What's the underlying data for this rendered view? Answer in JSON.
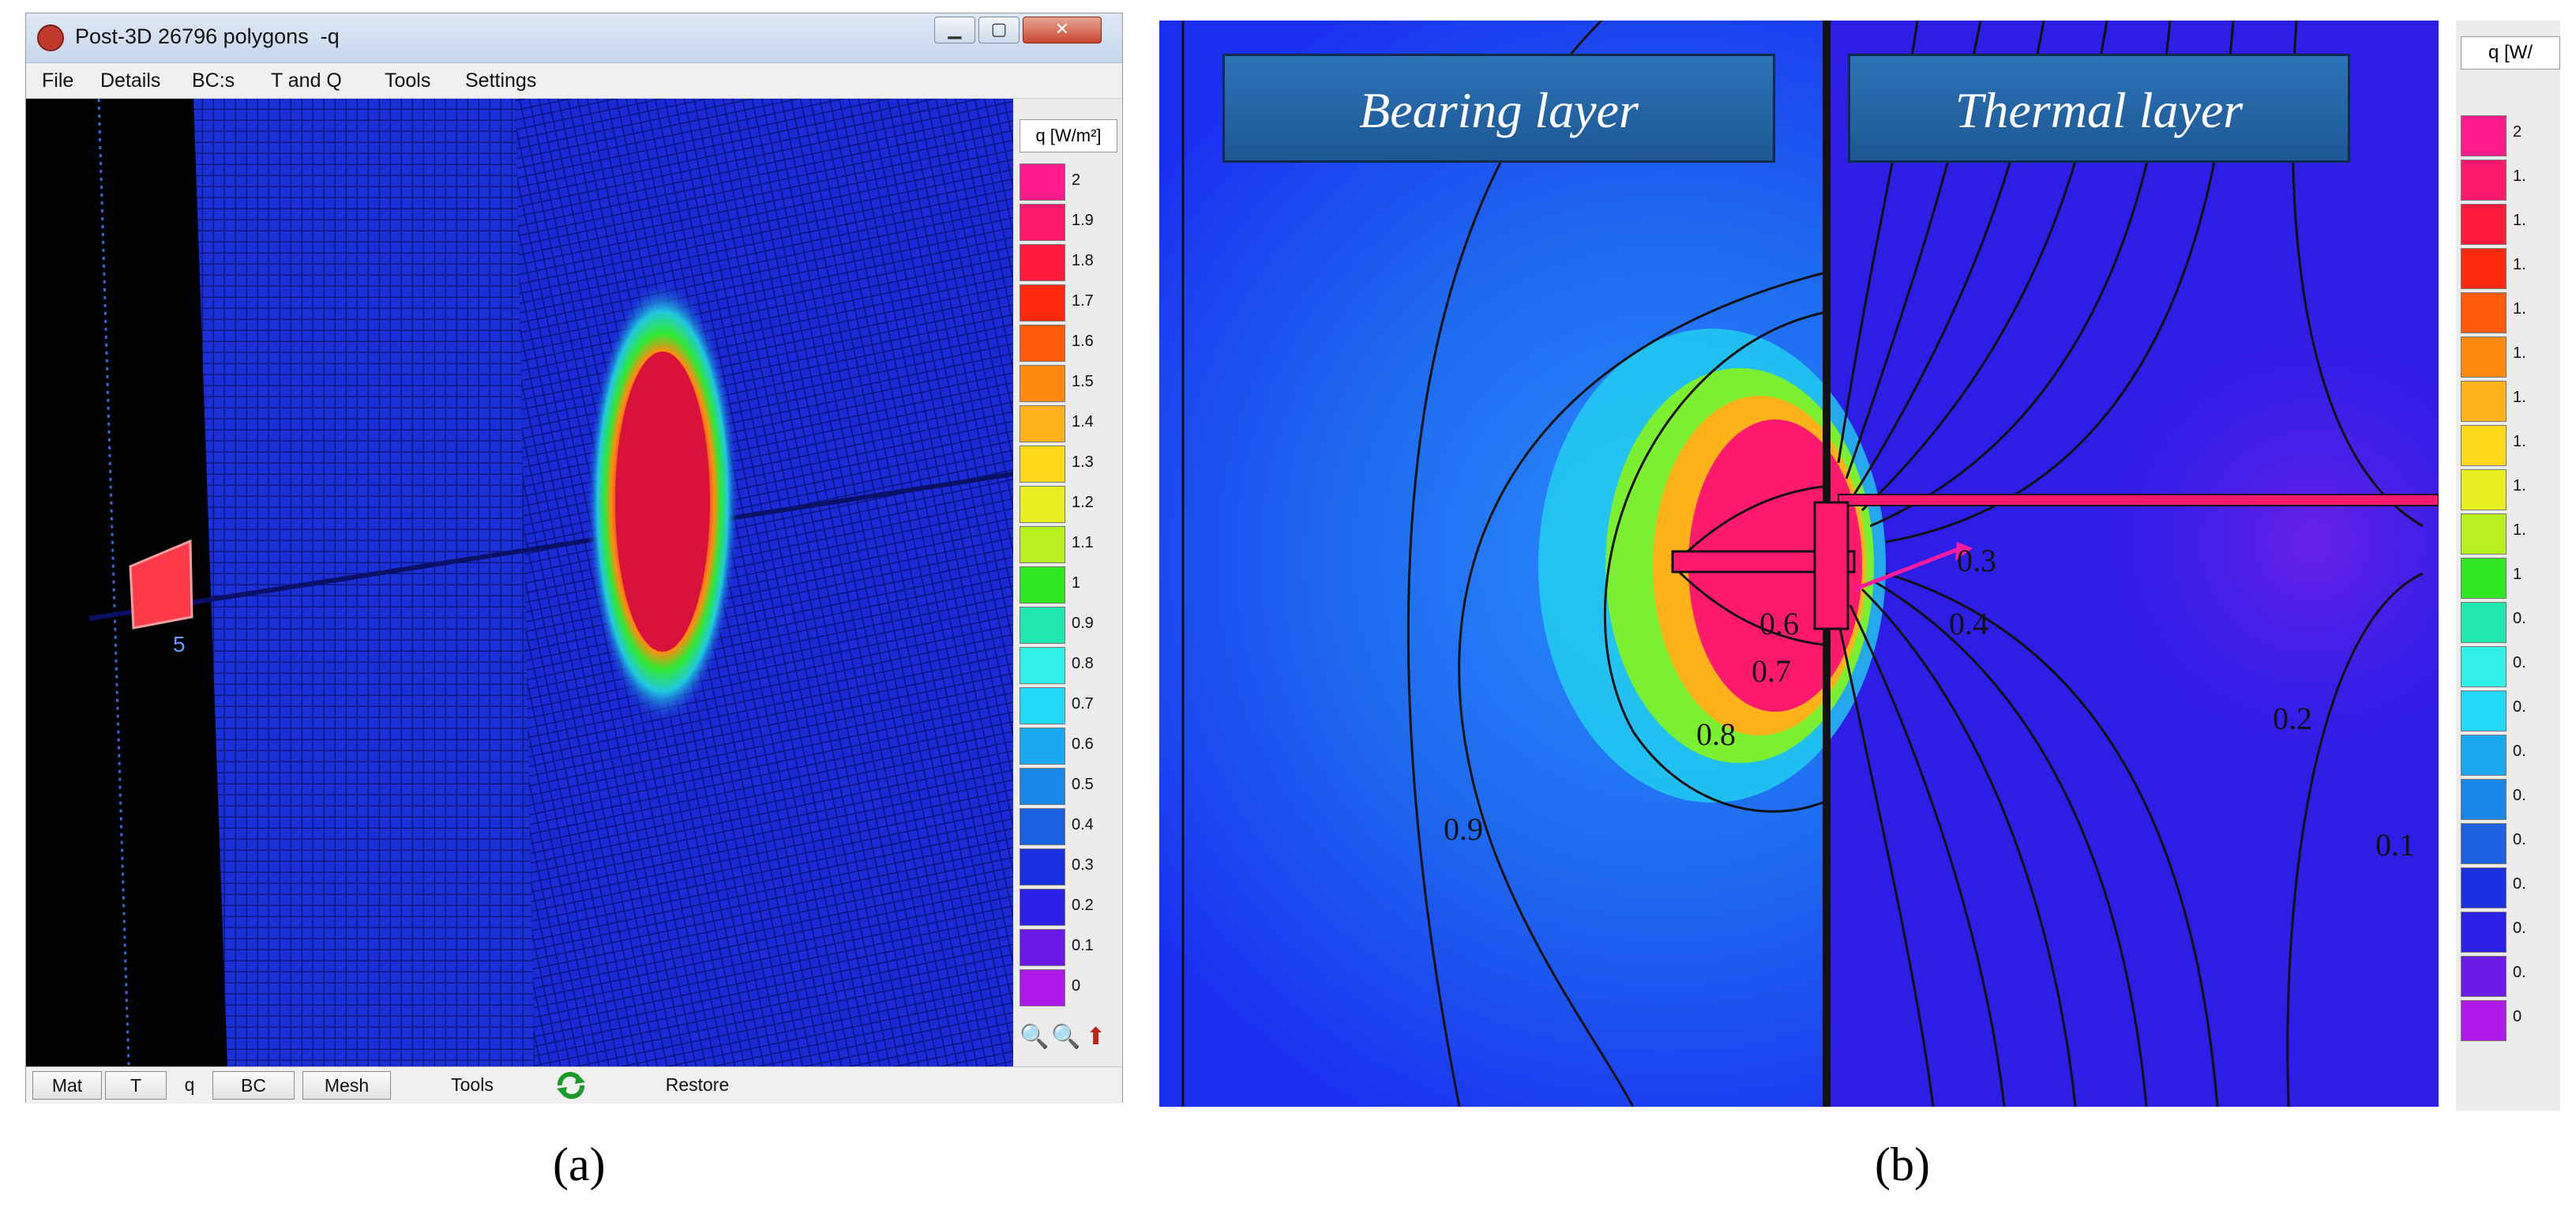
{
  "window_a": {
    "title": "Post-3D 26796 polygons  -q",
    "menu": [
      "File",
      "Details",
      "BC:s",
      "T and Q",
      "Tools",
      "Settings"
    ],
    "legend_title": "q [W/m²]",
    "legend_values": [
      "2",
      "1.9",
      "1.8",
      "1.7",
      "1.6",
      "1.5",
      "1.4",
      "1.3",
      "1.2",
      "1.1",
      "1",
      "0.9",
      "0.8",
      "0.7",
      "0.6",
      "0.5",
      "0.4",
      "0.3",
      "0.2",
      "0.1",
      "0"
    ],
    "legend_colors": [
      "#ff1a8c",
      "#ff1a6e",
      "#ff1a3c",
      "#ff2a10",
      "#ff5a0a",
      "#ff8a10",
      "#ffb21a",
      "#ffd81a",
      "#e8f020",
      "#b8f020",
      "#30e820",
      "#20e8b0",
      "#30f0e8",
      "#22d8f8",
      "#1aa8f0",
      "#1a86e8",
      "#1a60e0",
      "#1a30e0",
      "#2a20e8",
      "#6a1ae8",
      "#b01ae8"
    ],
    "bottom_buttons": [
      "Mat",
      "T",
      "q",
      "BC",
      "Mesh",
      "Tools",
      "Restore"
    ],
    "zoom_icons": [
      "zoom-in-icon",
      "zoom-out-icon",
      "pan-icon"
    ],
    "viewport_mark": "5"
  },
  "panel_b": {
    "labels": [
      "Bearing layer",
      "Thermal layer"
    ],
    "legend_title": "q [W/",
    "legend_values": [
      "2",
      "1.",
      "1.",
      "1.",
      "1.",
      "1.",
      "1.",
      "1.",
      "1.",
      "1.",
      "1",
      "0.",
      "0.",
      "0.",
      "0.",
      "0.",
      "0.",
      "0.",
      "0.",
      "0.",
      "0"
    ],
    "legend_colors": [
      "#ff1a8c",
      "#ff1a6e",
      "#ff1a3c",
      "#ff2a10",
      "#ff5a0a",
      "#ff8a10",
      "#ffb21a",
      "#ffd81a",
      "#e8f020",
      "#b8f020",
      "#30e820",
      "#20e8b0",
      "#30f0e8",
      "#22d8f8",
      "#1aa8f0",
      "#1a86e8",
      "#1a60e0",
      "#1a30e0",
      "#2a20e8",
      "#6a1ae8",
      "#b01ae8"
    ],
    "contour_labels": [
      "0.9",
      "0.8",
      "0.7",
      "0.6",
      "0.4",
      "0.3",
      "0.2",
      "0.1"
    ]
  },
  "captions": [
    "(a)",
    "(b)"
  ]
}
